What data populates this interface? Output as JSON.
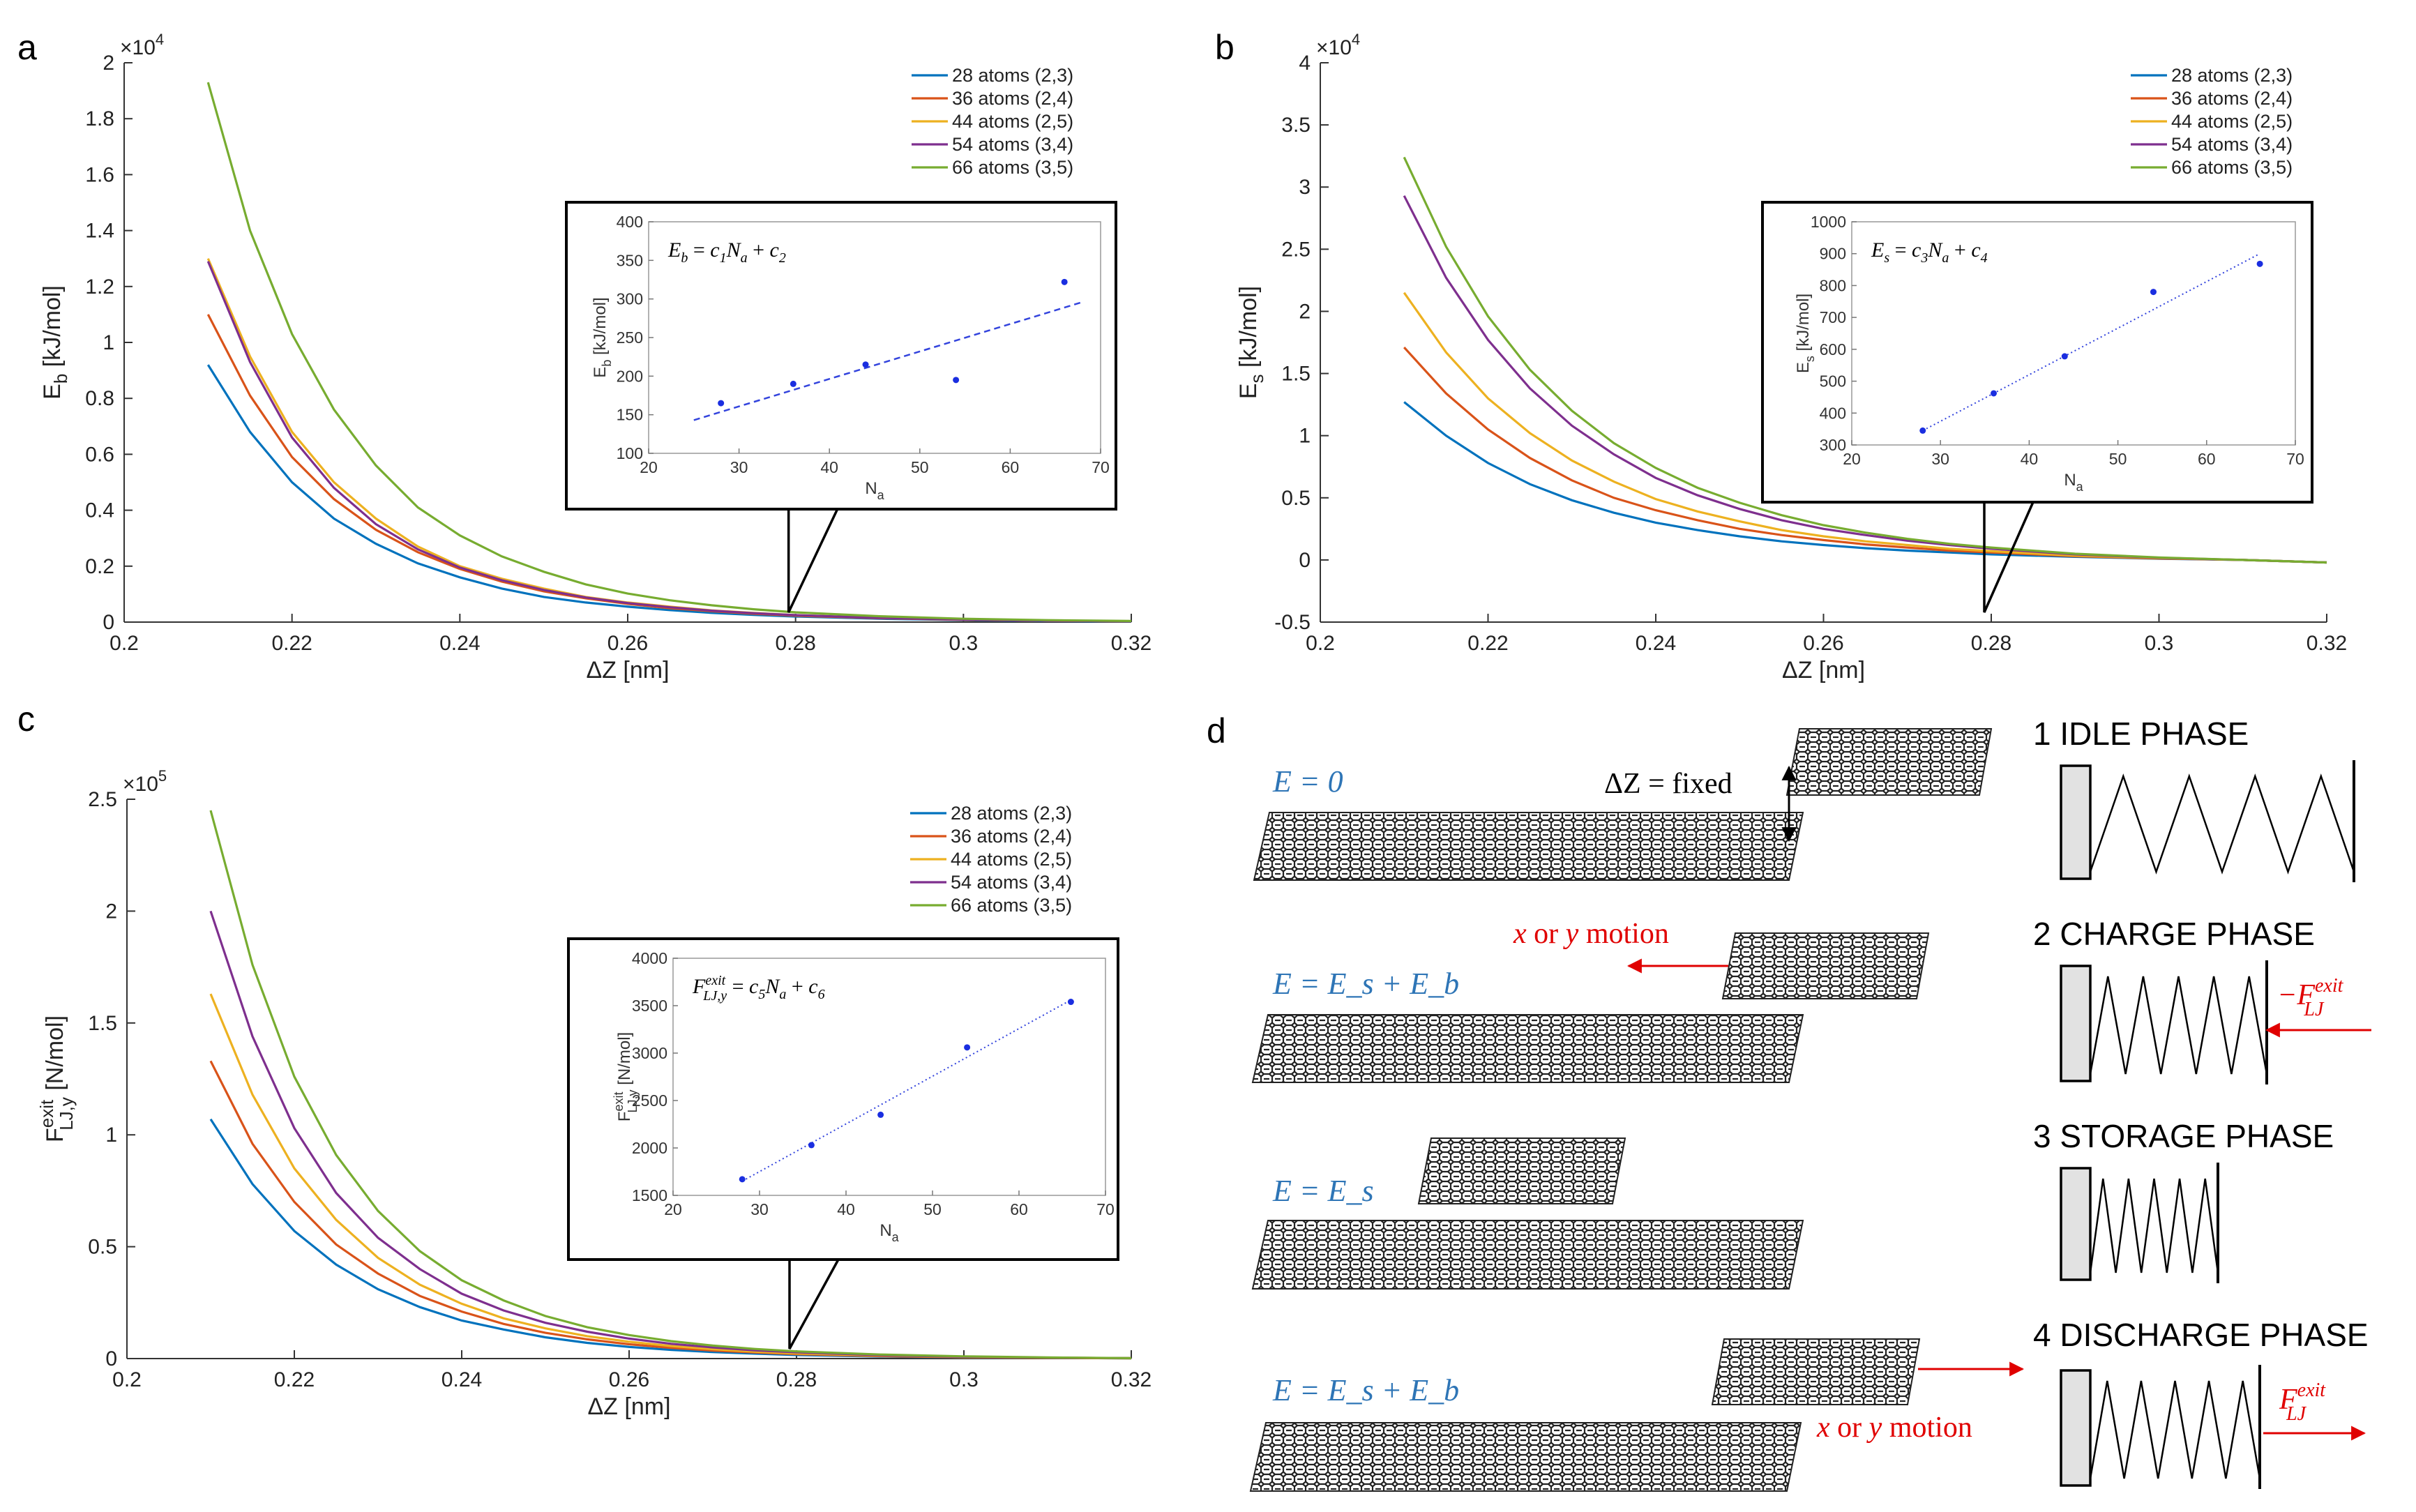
{
  "colors": [
    "#0072BD",
    "#D95319",
    "#EDB120",
    "#7E2F8E",
    "#77AC30"
  ],
  "chart_data": [
    {
      "panel": "a",
      "type": "line",
      "xlabel": "ΔZ [nm]",
      "ylabel": "E_b [kJ/mol]",
      "ylabel_main": "E",
      "ylabel_sub": "b",
      "ylabel_unit": " [kJ/mol]",
      "exponent_base": "×10",
      "exponent_power": "4",
      "xlim": [
        0.2,
        0.32
      ],
      "ylim": [
        0,
        2
      ],
      "xticks": [
        0.2,
        0.22,
        0.24,
        0.26,
        0.28,
        0.3,
        0.32
      ],
      "xtick_labels": [
        "0.2",
        "0.22",
        "0.24",
        "0.26",
        "0.28",
        "0.3",
        "0.32"
      ],
      "yticks": [
        0,
        0.2,
        0.4,
        0.6,
        0.8,
        1,
        1.2,
        1.4,
        1.6,
        1.8,
        2
      ],
      "ytick_labels": [
        "0",
        "0.2",
        "0.4",
        "0.6",
        "0.8",
        "1",
        "1.2",
        "1.4",
        "1.6",
        "1.8",
        "2"
      ],
      "x": [
        0.21,
        0.215,
        0.22,
        0.225,
        0.23,
        0.235,
        0.24,
        0.245,
        0.25,
        0.255,
        0.26,
        0.265,
        0.27,
        0.275,
        0.28,
        0.29,
        0.3,
        0.31,
        0.32
      ],
      "series": [
        {
          "name": "28 atoms (2,3)",
          "values": [
            0.92,
            0.68,
            0.5,
            0.37,
            0.28,
            0.21,
            0.16,
            0.12,
            0.09,
            0.07,
            0.055,
            0.043,
            0.033,
            0.026,
            0.02,
            0.012,
            0.007,
            0.004,
            0.002
          ]
        },
        {
          "name": "36 atoms (2,4)",
          "values": [
            1.1,
            0.81,
            0.59,
            0.44,
            0.33,
            0.25,
            0.19,
            0.145,
            0.11,
            0.085,
            0.065,
            0.05,
            0.039,
            0.03,
            0.023,
            0.014,
            0.008,
            0.005,
            0.003
          ]
        },
        {
          "name": "44 atoms (2,5)",
          "values": [
            1.3,
            0.95,
            0.68,
            0.5,
            0.37,
            0.27,
            0.2,
            0.155,
            0.12,
            0.09,
            0.07,
            0.055,
            0.042,
            0.033,
            0.025,
            0.015,
            0.009,
            0.005,
            0.003
          ]
        },
        {
          "name": "54 atoms (3,4)",
          "values": [
            1.29,
            0.93,
            0.66,
            0.48,
            0.35,
            0.26,
            0.195,
            0.15,
            0.115,
            0.088,
            0.068,
            0.053,
            0.041,
            0.032,
            0.025,
            0.015,
            0.009,
            0.005,
            0.003
          ]
        },
        {
          "name": "66 atoms (3,5)",
          "values": [
            1.93,
            1.4,
            1.03,
            0.76,
            0.56,
            0.41,
            0.31,
            0.235,
            0.18,
            0.135,
            0.102,
            0.078,
            0.06,
            0.046,
            0.035,
            0.021,
            0.012,
            0.007,
            0.004
          ]
        }
      ],
      "legend": "top-right",
      "callout_x": 0.28,
      "inset": {
        "formula": "E_b = c_1N_a + c_2",
        "formula_parts": {
          "lhs": "E",
          "lhs_sub": "b",
          "eq": " =  ",
          "c": "c",
          "c_sub": "1",
          "n": "N",
          "n_sub": "a",
          "plus": " +  ",
          "c2": "c",
          "c2_sub": "2"
        },
        "xlabel": "N_a",
        "xlabel_main": "N",
        "xlabel_sub": "a",
        "ylabel": "E_b [kJ/mol]",
        "ylabel_main": "E",
        "ylabel_sub": "b",
        "ylabel_unit": " [kJ/mol]",
        "xlim": [
          20,
          70
        ],
        "ylim": [
          100,
          400
        ],
        "xticks": [
          20,
          30,
          40,
          50,
          60,
          70
        ],
        "xtick_labels": [
          "20",
          "30",
          "40",
          "50",
          "60",
          "70"
        ],
        "yticks": [
          100,
          150,
          200,
          250,
          300,
          350,
          400
        ],
        "ytick_labels": [
          "100",
          "150",
          "200",
          "250",
          "300",
          "350",
          "400"
        ],
        "points": {
          "x": [
            28,
            36,
            44,
            54,
            66
          ],
          "y": [
            165,
            190,
            215,
            195,
            322
          ]
        },
        "fit": {
          "x": [
            25,
            68
          ],
          "y": [
            143,
            296
          ]
        },
        "fit_style": "dashed"
      }
    },
    {
      "panel": "b",
      "type": "line",
      "xlabel": "ΔZ [nm]",
      "ylabel": "E_s [kJ/mol]",
      "ylabel_main": "E",
      "ylabel_sub": "s",
      "ylabel_unit": " [kJ/mol]",
      "exponent_base": "×10",
      "exponent_power": "4",
      "xlim": [
        0.2,
        0.32
      ],
      "ylim": [
        -0.5,
        4
      ],
      "xticks": [
        0.2,
        0.22,
        0.24,
        0.26,
        0.28,
        0.3,
        0.32
      ],
      "xtick_labels": [
        "0.2",
        "0.22",
        "0.24",
        "0.26",
        "0.28",
        "0.3",
        "0.32"
      ],
      "yticks": [
        -0.5,
        0,
        0.5,
        1,
        1.5,
        2,
        2.5,
        3,
        3.5,
        4
      ],
      "ytick_labels": [
        "-0.5",
        "0",
        "0.5",
        "1",
        "1.5",
        "2",
        "2.5",
        "3",
        "3.5",
        "4"
      ],
      "x": [
        0.21,
        0.215,
        0.22,
        0.225,
        0.23,
        0.235,
        0.24,
        0.245,
        0.25,
        0.255,
        0.26,
        0.265,
        0.27,
        0.275,
        0.28,
        0.29,
        0.3,
        0.31,
        0.32
      ],
      "series": [
        {
          "name": "28 atoms (2,3)",
          "values": [
            1.27,
            1.0,
            0.78,
            0.61,
            0.48,
            0.38,
            0.3,
            0.24,
            0.19,
            0.15,
            0.12,
            0.095,
            0.075,
            0.06,
            0.045,
            0.025,
            0.01,
            0.0,
            -0.02
          ]
        },
        {
          "name": "36 atoms (2,4)",
          "values": [
            1.71,
            1.34,
            1.05,
            0.82,
            0.64,
            0.5,
            0.4,
            0.32,
            0.25,
            0.2,
            0.16,
            0.125,
            0.1,
            0.075,
            0.06,
            0.03,
            0.012,
            0.0,
            -0.02
          ]
        },
        {
          "name": "44 atoms (2,5)",
          "values": [
            2.15,
            1.67,
            1.3,
            1.02,
            0.8,
            0.63,
            0.49,
            0.39,
            0.31,
            0.24,
            0.19,
            0.15,
            0.12,
            0.09,
            0.07,
            0.035,
            0.015,
            0.0,
            -0.02
          ]
        },
        {
          "name": "54 atoms (3,4)",
          "values": [
            2.93,
            2.27,
            1.77,
            1.38,
            1.08,
            0.85,
            0.66,
            0.52,
            0.41,
            0.32,
            0.25,
            0.2,
            0.155,
            0.12,
            0.09,
            0.045,
            0.018,
            0.0,
            -0.02
          ]
        },
        {
          "name": "66 atoms (3,5)",
          "values": [
            3.24,
            2.52,
            1.96,
            1.53,
            1.2,
            0.94,
            0.74,
            0.58,
            0.46,
            0.36,
            0.28,
            0.22,
            0.17,
            0.13,
            0.1,
            0.05,
            0.02,
            0.0,
            -0.02
          ]
        }
      ],
      "legend": "top-right",
      "callout_x": 0.28,
      "inset": {
        "formula": "E_s = c_3N_a + c_4",
        "formula_parts": {
          "lhs": "E",
          "lhs_sub": "s",
          "eq": " =  ",
          "c": "c",
          "c_sub": "3",
          "n": "N",
          "n_sub": "a",
          "plus": " +  ",
          "c2": "c",
          "c2_sub": "4"
        },
        "xlabel": "N_a",
        "xlabel_main": "N",
        "xlabel_sub": "a",
        "ylabel": "E_s [kJ/mol]",
        "ylabel_main": "E",
        "ylabel_sub": "s",
        "ylabel_unit": " [kJ/mol]",
        "xlim": [
          20,
          70
        ],
        "ylim": [
          300,
          1000
        ],
        "xticks": [
          20,
          30,
          40,
          50,
          60,
          70
        ],
        "xtick_labels": [
          "20",
          "30",
          "40",
          "50",
          "60",
          "70"
        ],
        "yticks": [
          300,
          400,
          500,
          600,
          700,
          800,
          900,
          1000
        ],
        "ytick_labels": [
          "300",
          "400",
          "500",
          "600",
          "700",
          "800",
          "900",
          "1000"
        ],
        "points": {
          "x": [
            28,
            36,
            44,
            54,
            66
          ],
          "y": [
            345,
            462,
            578,
            780,
            868
          ]
        },
        "fit": {
          "x": [
            28,
            66
          ],
          "y": [
            345,
            900
          ]
        },
        "fit_style": "dotted"
      }
    },
    {
      "panel": "c",
      "type": "line",
      "xlabel": "ΔZ [nm]",
      "ylabel": "F_LJ,y^exit [N/mol]",
      "ylabel_main": "F",
      "ylabel_sub": "LJ,y",
      "ylabel_sup": "exit",
      "ylabel_unit": " [N/mol]",
      "exponent_base": "×10",
      "exponent_power": "5",
      "xlim": [
        0.2,
        0.32
      ],
      "ylim": [
        0,
        2.5
      ],
      "xticks": [
        0.2,
        0.22,
        0.24,
        0.26,
        0.28,
        0.3,
        0.32
      ],
      "xtick_labels": [
        "0.2",
        "0.22",
        "0.24",
        "0.26",
        "0.28",
        "0.3",
        "0.32"
      ],
      "yticks": [
        0,
        0.5,
        1,
        1.5,
        2,
        2.5
      ],
      "ytick_labels": [
        "0",
        "0.5",
        "1",
        "1.5",
        "2",
        "2.5"
      ],
      "x": [
        0.21,
        0.215,
        0.22,
        0.225,
        0.23,
        0.235,
        0.24,
        0.245,
        0.25,
        0.255,
        0.26,
        0.265,
        0.27,
        0.275,
        0.28,
        0.29,
        0.3,
        0.31,
        0.32
      ],
      "series": [
        {
          "name": "28 atoms (2,3)",
          "values": [
            1.07,
            0.78,
            0.57,
            0.42,
            0.31,
            0.23,
            0.17,
            0.13,
            0.095,
            0.07,
            0.052,
            0.039,
            0.029,
            0.022,
            0.016,
            0.009,
            0.005,
            0.003,
            0.001
          ]
        },
        {
          "name": "36 atoms (2,4)",
          "values": [
            1.33,
            0.96,
            0.7,
            0.51,
            0.38,
            0.28,
            0.21,
            0.155,
            0.115,
            0.086,
            0.064,
            0.048,
            0.036,
            0.027,
            0.02,
            0.011,
            0.006,
            0.003,
            0.001
          ]
        },
        {
          "name": "44 atoms (2,5)",
          "values": [
            1.63,
            1.18,
            0.85,
            0.62,
            0.45,
            0.33,
            0.245,
            0.18,
            0.135,
            0.1,
            0.075,
            0.056,
            0.042,
            0.031,
            0.023,
            0.013,
            0.007,
            0.004,
            0.002
          ]
        },
        {
          "name": "54 atoms (3,4)",
          "values": [
            2.0,
            1.44,
            1.03,
            0.74,
            0.54,
            0.4,
            0.29,
            0.215,
            0.16,
            0.12,
            0.089,
            0.066,
            0.05,
            0.037,
            0.028,
            0.015,
            0.008,
            0.004,
            0.002
          ]
        },
        {
          "name": "66 atoms (3,5)",
          "values": [
            2.45,
            1.76,
            1.26,
            0.91,
            0.66,
            0.48,
            0.35,
            0.26,
            0.19,
            0.14,
            0.105,
            0.078,
            0.058,
            0.043,
            0.032,
            0.018,
            0.01,
            0.005,
            0.002
          ]
        }
      ],
      "legend": "top-right",
      "callout_x": 0.28,
      "inset": {
        "formula": "F_LJ,y^exit = c_5N_a + c_6",
        "formula_parts": {
          "lhs": "F",
          "lhs_sub": "LJ,y",
          "lhs_sup": "exit",
          "eq": " =  ",
          "c": "c",
          "c_sub": "5",
          "n": "N",
          "n_sub": "a",
          "plus": " + ",
          "c2": "c",
          "c2_sub": "6"
        },
        "xlabel": "N_a",
        "xlabel_main": "N",
        "xlabel_sub": "a",
        "ylabel": "F_LJ,y^exit [N/mol]",
        "ylabel_main": "F",
        "ylabel_sub": "LJ,y",
        "ylabel_sup": "exit",
        "ylabel_unit": " [N/mol]",
        "xlim": [
          20,
          70
        ],
        "ylim": [
          1500,
          4000
        ],
        "xticks": [
          20,
          30,
          40,
          50,
          60,
          70
        ],
        "xtick_labels": [
          "20",
          "30",
          "40",
          "50",
          "60",
          "70"
        ],
        "yticks": [
          1500,
          2000,
          2500,
          3000,
          3500,
          4000
        ],
        "ytick_labels": [
          "1500",
          "2000",
          "2500",
          "3000",
          "3500",
          "4000"
        ],
        "points": {
          "x": [
            28,
            36,
            44,
            54,
            66
          ],
          "y": [
            1670,
            2030,
            2350,
            3060,
            3540
          ]
        },
        "fit": {
          "x": [
            28,
            66
          ],
          "y": [
            1650,
            3560
          ]
        },
        "fit_style": "dotted"
      }
    }
  ],
  "panel_d": {
    "label": "d",
    "phases": [
      {
        "title": "1 IDLE PHASE",
        "energy": "E = 0"
      },
      {
        "title": "2 CHARGE PHASE",
        "energy": "E = E_s + E_b"
      },
      {
        "title": "3 STORAGE PHASE",
        "energy": "E = E_s"
      },
      {
        "title": "4 DISCHARGE PHASE",
        "energy": "E = E_s + E_b"
      }
    ],
    "dz_label": "ΔZ = fixed",
    "motion_label": "x or y motion",
    "motion_parts": {
      "x": "x",
      "or": " or ",
      "y": "y",
      "motion": " motion"
    },
    "force_neg": "−F",
    "force_pos": "F",
    "force_sub": "LJ",
    "force_sup": "exit"
  }
}
